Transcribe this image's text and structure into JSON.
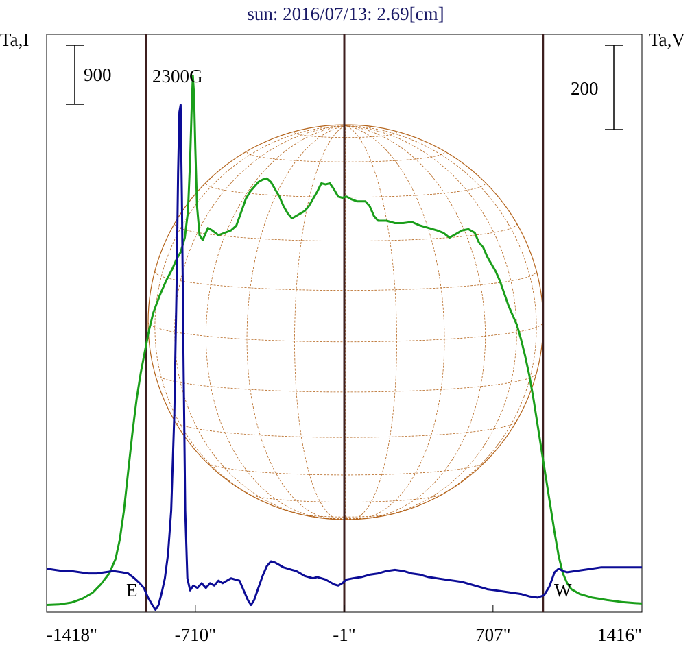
{
  "chart_data": {
    "type": "line",
    "title": "sun: 2016/07/13: 2.69[cm]",
    "ylabel_left": "Ta,I",
    "ylabel_right": "Ta,V",
    "xlabel": "",
    "x_tick_labels": [
      "-1418\"",
      "-710\"",
      "-1\"",
      "707\"",
      "1416\""
    ],
    "x_ticks": [
      -1418,
      -710,
      -1,
      707,
      1416
    ],
    "xlim": [
      -1418,
      1416
    ],
    "annotations": {
      "magnetic_field": "2300G",
      "east": "E",
      "west": "W"
    },
    "scale_bars": {
      "left_value": "900",
      "right_value": "200"
    },
    "markers_x": [
      -945,
      -1,
      945
    ],
    "series": [
      {
        "color": "#1a9e1a",
        "values": [
          [
            -1418,
            10
          ],
          [
            -1360,
            12
          ],
          [
            -1300,
            20
          ],
          [
            -1250,
            35
          ],
          [
            -1200,
            60
          ],
          [
            -1160,
            95
          ],
          [
            -1120,
            140
          ],
          [
            -1090,
            200
          ],
          [
            -1070,
            280
          ],
          [
            -1050,
            400
          ],
          [
            -1030,
            560
          ],
          [
            -1010,
            720
          ],
          [
            -990,
            860
          ],
          [
            -970,
            970
          ],
          [
            -950,
            1060
          ],
          [
            -930,
            1150
          ],
          [
            -910,
            1220
          ],
          [
            -880,
            1290
          ],
          [
            -850,
            1350
          ],
          [
            -820,
            1400
          ],
          [
            -800,
            1440
          ],
          [
            -780,
            1470
          ],
          [
            -760,
            1530
          ],
          [
            -745,
            1640
          ],
          [
            -735,
            1850
          ],
          [
            -728,
            2050
          ],
          [
            -722,
            2200
          ],
          [
            -716,
            2120
          ],
          [
            -710,
            1900
          ],
          [
            -702,
            1660
          ],
          [
            -690,
            1540
          ],
          [
            -675,
            1520
          ],
          [
            -650,
            1570
          ],
          [
            -630,
            1560
          ],
          [
            -600,
            1540
          ],
          [
            -570,
            1550
          ],
          [
            -540,
            1560
          ],
          [
            -515,
            1580
          ],
          [
            -490,
            1640
          ],
          [
            -470,
            1690
          ],
          [
            -450,
            1720
          ],
          [
            -430,
            1740
          ],
          [
            -410,
            1760
          ],
          [
            -390,
            1770
          ],
          [
            -370,
            1775
          ],
          [
            -350,
            1760
          ],
          [
            -330,
            1730
          ],
          [
            -310,
            1700
          ],
          [
            -290,
            1660
          ],
          [
            -270,
            1630
          ],
          [
            -250,
            1610
          ],
          [
            -230,
            1620
          ],
          [
            -210,
            1630
          ],
          [
            -190,
            1640
          ],
          [
            -170,
            1660
          ],
          [
            -150,
            1690
          ],
          [
            -130,
            1720
          ],
          [
            -110,
            1755
          ],
          [
            -90,
            1750
          ],
          [
            -70,
            1755
          ],
          [
            -50,
            1730
          ],
          [
            -30,
            1700
          ],
          [
            -10,
            1695
          ],
          [
            10,
            1700
          ],
          [
            30,
            1690
          ],
          [
            60,
            1680
          ],
          [
            100,
            1680
          ],
          [
            120,
            1660
          ],
          [
            140,
            1620
          ],
          [
            160,
            1600
          ],
          [
            200,
            1600
          ],
          [
            240,
            1590
          ],
          [
            280,
            1590
          ],
          [
            320,
            1595
          ],
          [
            360,
            1580
          ],
          [
            400,
            1570
          ],
          [
            440,
            1560
          ],
          [
            470,
            1550
          ],
          [
            500,
            1530
          ],
          [
            530,
            1545
          ],
          [
            560,
            1560
          ],
          [
            590,
            1565
          ],
          [
            620,
            1550
          ],
          [
            640,
            1510
          ],
          [
            660,
            1490
          ],
          [
            680,
            1450
          ],
          [
            700,
            1420
          ],
          [
            720,
            1390
          ],
          [
            740,
            1350
          ],
          [
            760,
            1300
          ],
          [
            780,
            1250
          ],
          [
            800,
            1210
          ],
          [
            820,
            1170
          ],
          [
            840,
            1110
          ],
          [
            860,
            1040
          ],
          [
            880,
            960
          ],
          [
            900,
            860
          ],
          [
            920,
            750
          ],
          [
            940,
            640
          ],
          [
            960,
            530
          ],
          [
            980,
            420
          ],
          [
            1000,
            310
          ],
          [
            1020,
            210
          ],
          [
            1040,
            140
          ],
          [
            1060,
            100
          ],
          [
            1080,
            75
          ],
          [
            1120,
            55
          ],
          [
            1180,
            40
          ],
          [
            1250,
            30
          ],
          [
            1320,
            22
          ],
          [
            1380,
            18
          ],
          [
            1416,
            16
          ]
        ]
      },
      {
        "color": "#0c0c96",
        "values": [
          [
            -1418,
            160
          ],
          [
            -1380,
            155
          ],
          [
            -1340,
            150
          ],
          [
            -1300,
            150
          ],
          [
            -1260,
            145
          ],
          [
            -1220,
            140
          ],
          [
            -1180,
            140
          ],
          [
            -1140,
            145
          ],
          [
            -1100,
            150
          ],
          [
            -1060,
            145
          ],
          [
            -1030,
            140
          ],
          [
            -1000,
            120
          ],
          [
            -975,
            100
          ],
          [
            -955,
            80
          ],
          [
            -935,
            40
          ],
          [
            -915,
            10
          ],
          [
            -900,
            -10
          ],
          [
            -885,
            10
          ],
          [
            -870,
            60
          ],
          [
            -855,
            120
          ],
          [
            -840,
            220
          ],
          [
            -825,
            400
          ],
          [
            -810,
            800
          ],
          [
            -800,
            1300
          ],
          [
            -792,
            1800
          ],
          [
            -786,
            2050
          ],
          [
            -780,
            2080
          ],
          [
            -774,
            1700
          ],
          [
            -766,
            1000
          ],
          [
            -758,
            400
          ],
          [
            -748,
            120
          ],
          [
            -735,
            70
          ],
          [
            -720,
            90
          ],
          [
            -700,
            80
          ],
          [
            -680,
            100
          ],
          [
            -660,
            80
          ],
          [
            -640,
            100
          ],
          [
            -620,
            90
          ],
          [
            -600,
            110
          ],
          [
            -580,
            100
          ],
          [
            -560,
            110
          ],
          [
            -540,
            120
          ],
          [
            -520,
            115
          ],
          [
            -500,
            110
          ],
          [
            -480,
            70
          ],
          [
            -460,
            30
          ],
          [
            -445,
            10
          ],
          [
            -430,
            30
          ],
          [
            -410,
            80
          ],
          [
            -390,
            130
          ],
          [
            -370,
            170
          ],
          [
            -350,
            190
          ],
          [
            -330,
            185
          ],
          [
            -310,
            175
          ],
          [
            -290,
            165
          ],
          [
            -270,
            160
          ],
          [
            -250,
            155
          ],
          [
            -230,
            150
          ],
          [
            -210,
            140
          ],
          [
            -190,
            130
          ],
          [
            -170,
            125
          ],
          [
            -150,
            120
          ],
          [
            -130,
            125
          ],
          [
            -110,
            120
          ],
          [
            -90,
            115
          ],
          [
            -70,
            105
          ],
          [
            -50,
            95
          ],
          [
            -30,
            90
          ],
          [
            -10,
            100
          ],
          [
            10,
            115
          ],
          [
            40,
            120
          ],
          [
            80,
            125
          ],
          [
            120,
            135
          ],
          [
            160,
            140
          ],
          [
            200,
            150
          ],
          [
            240,
            155
          ],
          [
            280,
            150
          ],
          [
            320,
            140
          ],
          [
            360,
            135
          ],
          [
            400,
            125
          ],
          [
            440,
            120
          ],
          [
            480,
            115
          ],
          [
            520,
            110
          ],
          [
            560,
            105
          ],
          [
            600,
            95
          ],
          [
            640,
            85
          ],
          [
            680,
            75
          ],
          [
            720,
            70
          ],
          [
            760,
            65
          ],
          [
            800,
            60
          ],
          [
            840,
            55
          ],
          [
            880,
            45
          ],
          [
            920,
            40
          ],
          [
            950,
            50
          ],
          [
            975,
            85
          ],
          [
            1000,
            145
          ],
          [
            1020,
            160
          ],
          [
            1040,
            150
          ],
          [
            1060,
            145
          ],
          [
            1100,
            150
          ],
          [
            1140,
            155
          ],
          [
            1180,
            160
          ],
          [
            1220,
            165
          ],
          [
            1260,
            165
          ],
          [
            1300,
            165
          ],
          [
            1340,
            165
          ],
          [
            1380,
            165
          ],
          [
            1416,
            165
          ]
        ]
      }
    ]
  }
}
